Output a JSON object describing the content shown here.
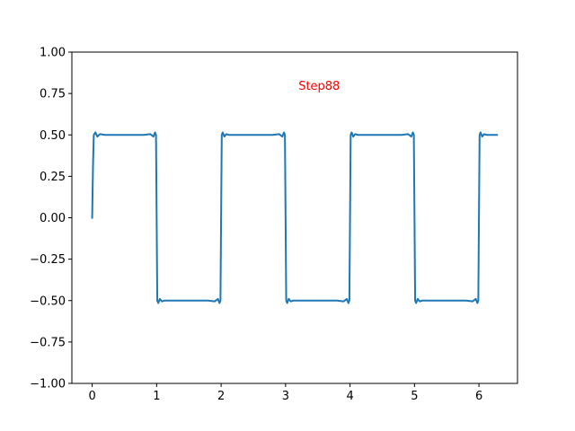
{
  "chart_data": {
    "type": "line",
    "title": "",
    "xlabel": "",
    "ylabel": "",
    "xlim": [
      -0.315,
      6.598
    ],
    "ylim": [
      -1.0,
      1.0
    ],
    "grid": false,
    "x_ticks": [
      0,
      1,
      2,
      3,
      4,
      5,
      6
    ],
    "x_tick_labels": [
      "0",
      "1",
      "2",
      "3",
      "4",
      "5",
      "6"
    ],
    "y_ticks": [
      1.0,
      0.75,
      0.5,
      0.25,
      0.0,
      -0.25,
      -0.5,
      -0.75,
      -1.0
    ],
    "y_tick_labels": [
      "1.00",
      "0.75",
      "0.50",
      "0.25",
      "0.00",
      "−0.25",
      "−0.50",
      "−0.75",
      "−1.00"
    ],
    "annotation": {
      "text": "Step88",
      "x": 3.2,
      "y": 0.8,
      "color": "#ff0000"
    },
    "series": [
      {
        "color": "#1f77b4",
        "x": [
          0.0,
          0.012,
          0.025,
          0.05,
          0.08,
          0.12,
          0.2,
          0.4,
          0.6,
          0.8,
          0.9,
          0.95,
          0.975,
          0.99,
          1.0,
          1.01,
          1.025,
          1.05,
          1.08,
          1.12,
          1.2,
          1.4,
          1.6,
          1.8,
          1.9,
          1.95,
          1.975,
          1.99,
          2.0,
          2.01,
          2.025,
          2.05,
          2.08,
          2.12,
          2.2,
          2.4,
          2.6,
          2.8,
          2.9,
          2.95,
          2.975,
          2.99,
          3.0,
          3.01,
          3.025,
          3.05,
          3.08,
          3.12,
          3.2,
          3.4,
          3.6,
          3.8,
          3.9,
          3.95,
          3.975,
          3.99,
          4.0,
          4.01,
          4.025,
          4.05,
          4.08,
          4.12,
          4.2,
          4.4,
          4.6,
          4.8,
          4.9,
          4.95,
          4.975,
          4.99,
          5.0,
          5.01,
          5.025,
          5.05,
          5.08,
          5.12,
          5.2,
          5.4,
          5.6,
          5.8,
          5.9,
          5.95,
          5.975,
          5.99,
          6.0,
          6.01,
          6.025,
          6.05,
          6.08,
          6.12,
          6.2,
          6.28
        ],
        "y": [
          0.0,
          0.3,
          0.5,
          0.515,
          0.49,
          0.505,
          0.5,
          0.5,
          0.5,
          0.5,
          0.505,
          0.49,
          0.515,
          0.5,
          0.0,
          -0.5,
          -0.515,
          -0.49,
          -0.505,
          -0.5,
          -0.5,
          -0.5,
          -0.5,
          -0.5,
          -0.505,
          -0.49,
          -0.515,
          -0.5,
          0.0,
          0.5,
          0.515,
          0.49,
          0.505,
          0.5,
          0.5,
          0.5,
          0.5,
          0.5,
          0.505,
          0.49,
          0.515,
          0.5,
          0.0,
          -0.5,
          -0.515,
          -0.49,
          -0.505,
          -0.5,
          -0.5,
          -0.5,
          -0.5,
          -0.5,
          -0.505,
          -0.49,
          -0.515,
          -0.5,
          0.0,
          0.5,
          0.515,
          0.49,
          0.505,
          0.5,
          0.5,
          0.5,
          0.5,
          0.5,
          0.505,
          0.49,
          0.515,
          0.5,
          0.0,
          -0.5,
          -0.515,
          -0.49,
          -0.505,
          -0.5,
          -0.5,
          -0.5,
          -0.5,
          -0.5,
          -0.505,
          -0.49,
          -0.515,
          -0.5,
          0.0,
          0.5,
          0.515,
          0.49,
          0.505,
          0.5,
          0.5,
          0.5
        ]
      }
    ]
  }
}
